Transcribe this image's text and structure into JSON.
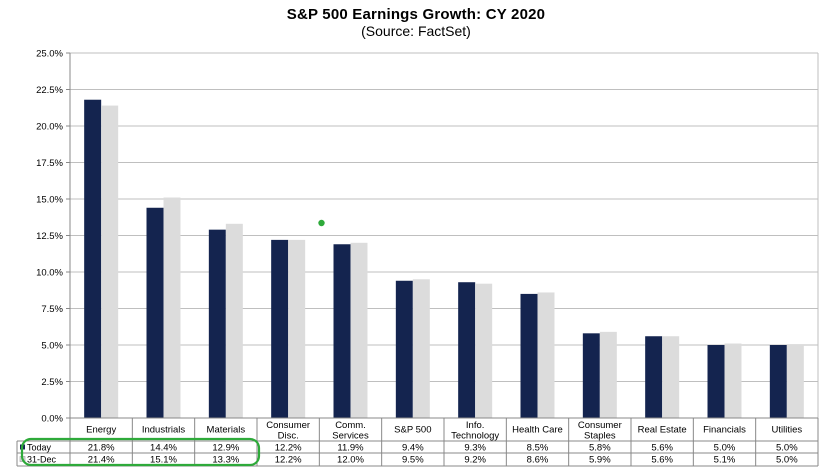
{
  "chart_data": {
    "type": "bar",
    "title": "S&P 500 Earnings Growth: CY 2020",
    "subtitle": "(Source: FactSet)",
    "categories": [
      [
        "Energy"
      ],
      [
        "Industrials"
      ],
      [
        "Materials"
      ],
      [
        "Consumer",
        "Disc."
      ],
      [
        "Comm.",
        "Services"
      ],
      [
        "S&P 500"
      ],
      [
        "Info.",
        "Technology"
      ],
      [
        "Health Care"
      ],
      [
        "Consumer",
        "Staples"
      ],
      [
        "Real Estate"
      ],
      [
        "Financials"
      ],
      [
        "Utilities"
      ]
    ],
    "series": [
      {
        "name": "Today",
        "color": "#14244f",
        "values": [
          21.8,
          14.4,
          12.9,
          12.2,
          11.9,
          9.4,
          9.3,
          8.5,
          5.8,
          5.6,
          5.0,
          5.0
        ],
        "labels": [
          "21.8%",
          "14.4%",
          "12.9%",
          "12.2%",
          "11.9%",
          "9.4%",
          "9.3%",
          "8.5%",
          "5.8%",
          "5.6%",
          "5.0%",
          "5.0%"
        ]
      },
      {
        "name": "31-Dec",
        "color": "#dcdcdc",
        "values": [
          21.4,
          15.1,
          13.3,
          12.2,
          12.0,
          9.5,
          9.2,
          8.6,
          5.9,
          5.6,
          5.1,
          5.0
        ],
        "labels": [
          "21.4%",
          "15.1%",
          "13.3%",
          "12.2%",
          "12.0%",
          "9.5%",
          "9.2%",
          "8.6%",
          "5.9%",
          "5.6%",
          "5.1%",
          "5.0%"
        ]
      }
    ],
    "ylim": [
      0,
      25
    ],
    "yticks": [
      "0.0%",
      "2.5%",
      "5.0%",
      "7.5%",
      "10.0%",
      "12.5%",
      "15.0%",
      "17.5%",
      "20.0%",
      "22.5%",
      "25.0%"
    ],
    "ytick_values": [
      0,
      2.5,
      5,
      7.5,
      10,
      12.5,
      15,
      17.5,
      20,
      22.5,
      25
    ],
    "grid": true,
    "legend": "data-table"
  },
  "annotations": {
    "highlight_color": "#2eaa3a"
  }
}
